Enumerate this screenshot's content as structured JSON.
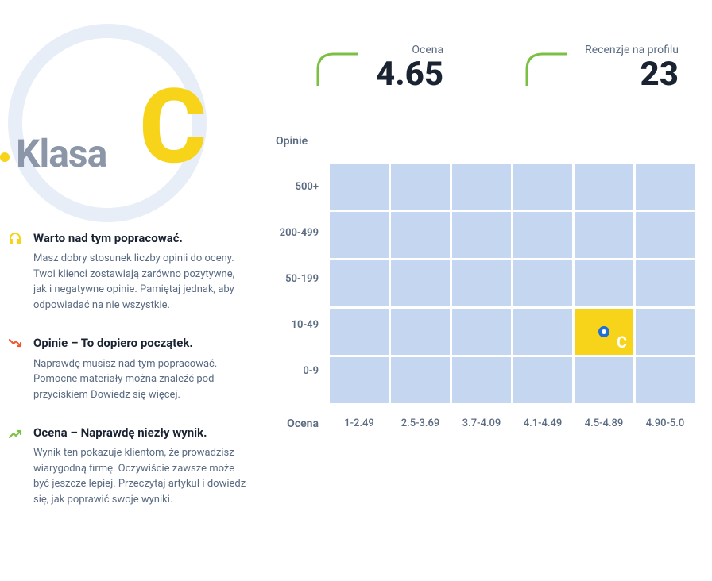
{
  "hero": {
    "label": "Klasa",
    "grade": "C",
    "grade_color": "#f7d41a",
    "label_color": "#8b97a8",
    "circle_border_color": "#e8eef8"
  },
  "stats": [
    {
      "label": "Ocena",
      "value": "4.65",
      "bracket_color": "#7bc043"
    },
    {
      "label": "Recenzje na profilu",
      "value": "23",
      "bracket_color": "#7bc043"
    }
  ],
  "notes": [
    {
      "icon": "headset",
      "icon_color": "#f7d41a",
      "title": "Warto nad tym popracować.",
      "desc": "Masz dobry stosunek liczby opinii do oceny. Twoi klienci zostawiają zarówno pozytywne, jak i negatywne opinie. Pamiętaj jednak, aby odpowiadać na nie wszystkie."
    },
    {
      "icon": "trend-down",
      "icon_color": "#f1592a",
      "title": "Opinie – To dopiero początek.",
      "desc": "Naprawdę musisz nad tym popracować. Pomocne materiały można znaleźć pod przyciskiem Dowiedz się więcej."
    },
    {
      "icon": "trend-up",
      "icon_color": "#7bc043",
      "title": "Ocena – Naprawdę niezły wynik.",
      "desc": "Wynik ten pokazuje klientom, że prowadzisz wiarygodną firmę. Oczywiście zawsze może być jeszcze lepiej. Przeczytaj artykuł i dowiedz się, jak poprawić swoje wyniki."
    }
  ],
  "chart": {
    "type": "heatmap",
    "y_label": "Opinie",
    "x_label": "Ocena",
    "y_ticks": [
      "500+",
      "200-499",
      "50-199",
      "10-49",
      "0-9"
    ],
    "x_ticks": [
      "1-2.49",
      "2.5-3.69",
      "3.7-4.09",
      "4.1-4.49",
      "4.5-4.89",
      "4.90-5.0"
    ],
    "rows": 5,
    "cols": 6,
    "cell_color": "#c5d7f0",
    "active_cell_color": "#f7d41a",
    "active": {
      "row": 3,
      "col": 4,
      "letter": "C"
    },
    "marker_border_color": "#1e6fd9",
    "marker_fill_color": "#ffffff",
    "tick_color": "#5a6b82",
    "background_color": "#ffffff"
  }
}
